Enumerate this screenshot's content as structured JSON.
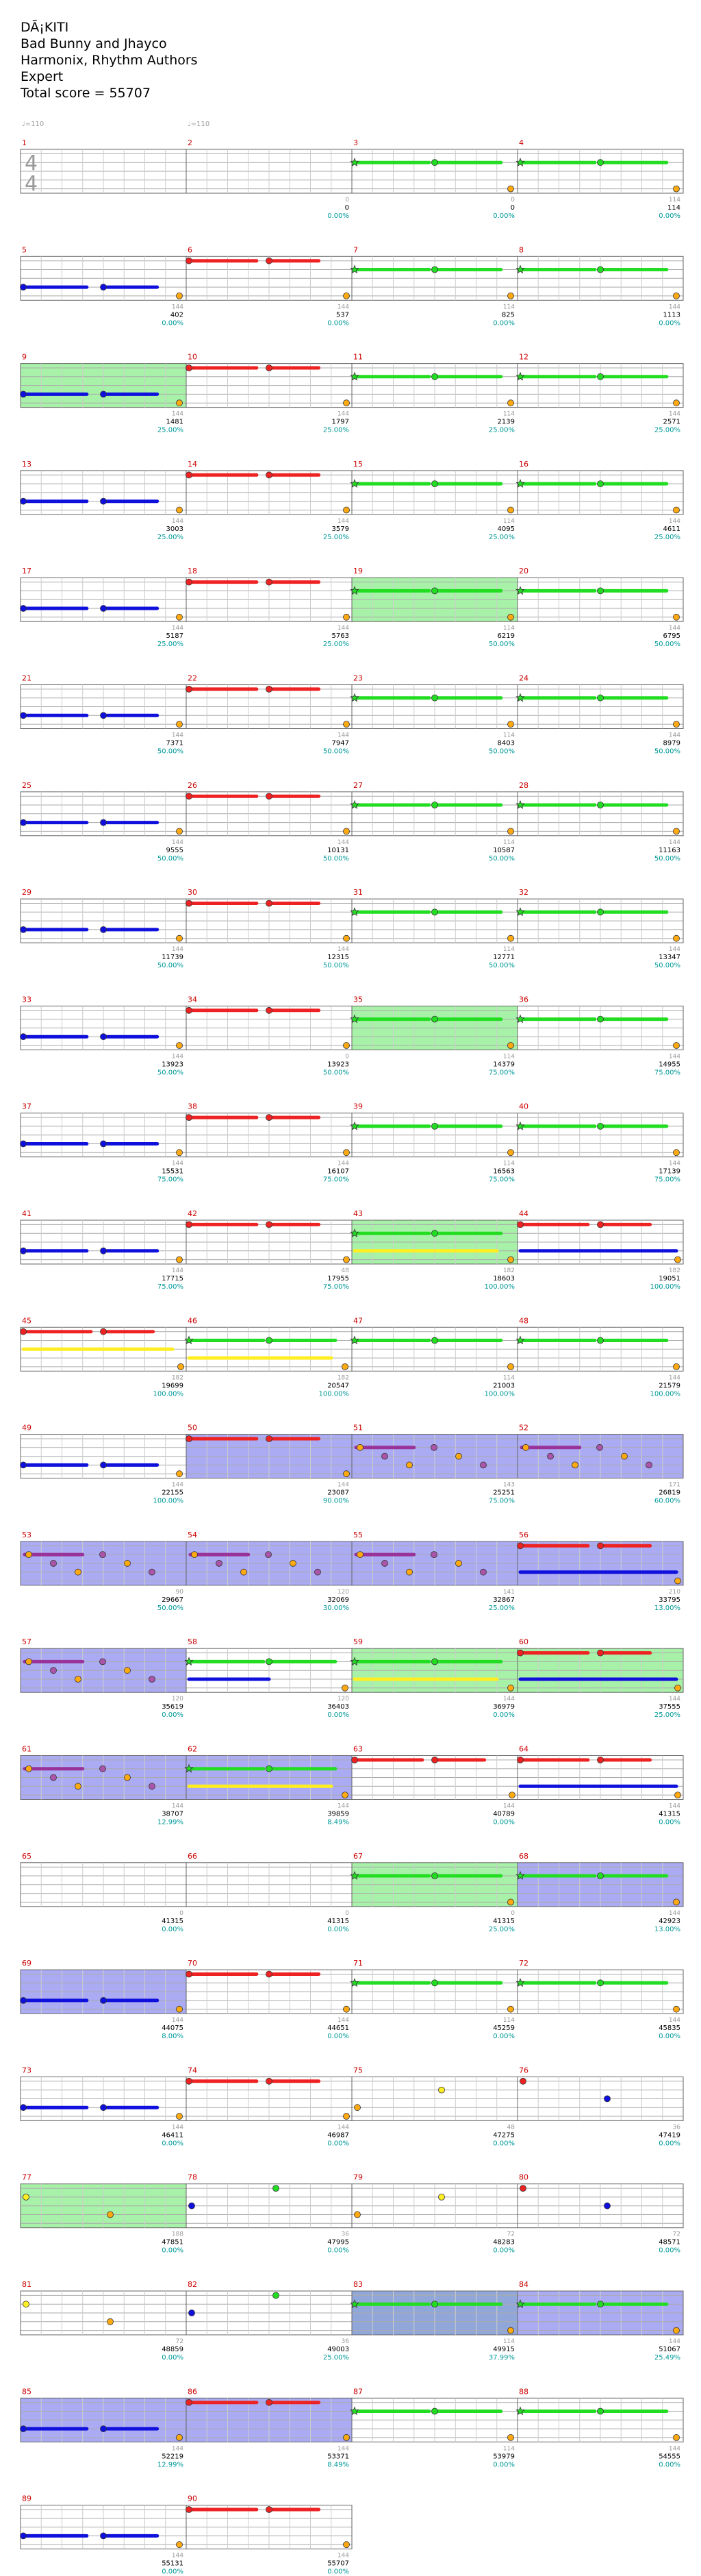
{
  "header": {
    "title": "DÃ¡KITI",
    "artists": "Bad Bunny and Jhayco",
    "authors": "Harmonix, Rhythm Authors",
    "difficulty": "Expert",
    "total_score": "Total score = 55707"
  },
  "tempo_marks": [
    {
      "measure": 1,
      "text": "♩=110"
    },
    {
      "measure": 2,
      "text": "♩=110"
    }
  ],
  "time_signature": {
    "measure": 1,
    "top": "4",
    "bottom": "4"
  },
  "colors": {
    "green": "#22dd22",
    "red": "#ee2222",
    "yellow": "#ffee22",
    "blue": "#1010dd",
    "orange": "#ffaa11",
    "overdrive": "#99ee99",
    "solo": "#8888ee",
    "measure_number": "#cc0000",
    "score_text": "#000000",
    "percent_text": "#009999",
    "grey_text": "#999999"
  },
  "measures": [
    {
      "n": 1,
      "type": "intro",
      "combo": "",
      "score": "",
      "pct": ""
    },
    {
      "n": 2,
      "type": "intro",
      "combo": "0",
      "score": "0",
      "pct": "0.00%"
    },
    {
      "n": 3,
      "type": "G",
      "combo": "0",
      "score": "0",
      "pct": "0.00%"
    },
    {
      "n": 4,
      "type": "G",
      "combo": "114",
      "score": "114",
      "pct": "0.00%"
    },
    {
      "n": 5,
      "type": "B",
      "combo": "144",
      "score": "402",
      "pct": "0.00%"
    },
    {
      "n": 6,
      "type": "R",
      "combo": "144",
      "score": "537",
      "pct": "0.00%"
    },
    {
      "n": 7,
      "type": "G",
      "combo": "114",
      "score": "825",
      "pct": "0.00%"
    },
    {
      "n": 8,
      "type": "G",
      "combo": "144",
      "score": "1113",
      "pct": "0.00%"
    },
    {
      "n": 9,
      "type": "B",
      "combo": "144",
      "score": "1481",
      "pct": "25.00%",
      "hl": "od"
    },
    {
      "n": 10,
      "type": "R",
      "combo": "144",
      "score": "1797",
      "pct": "25.00%"
    },
    {
      "n": 11,
      "type": "G",
      "combo": "114",
      "score": "2139",
      "pct": "25.00%"
    },
    {
      "n": 12,
      "type": "G",
      "combo": "144",
      "score": "2571",
      "pct": "25.00%"
    },
    {
      "n": 13,
      "type": "B",
      "combo": "144",
      "score": "3003",
      "pct": "25.00%"
    },
    {
      "n": 14,
      "type": "R",
      "combo": "144",
      "score": "3579",
      "pct": "25.00%"
    },
    {
      "n": 15,
      "type": "G",
      "combo": "114",
      "score": "4095",
      "pct": "25.00%"
    },
    {
      "n": 16,
      "type": "G",
      "combo": "144",
      "score": "4611",
      "pct": "25.00%"
    },
    {
      "n": 17,
      "type": "B",
      "combo": "144",
      "score": "5187",
      "pct": "25.00%"
    },
    {
      "n": 18,
      "type": "R",
      "combo": "144",
      "score": "5763",
      "pct": "25.00%"
    },
    {
      "n": 19,
      "type": "G",
      "combo": "114",
      "score": "6219",
      "pct": "50.00%",
      "hl": "od"
    },
    {
      "n": 20,
      "type": "G",
      "combo": "144",
      "score": "6795",
      "pct": "50.00%"
    },
    {
      "n": 21,
      "type": "B",
      "combo": "144",
      "score": "7371",
      "pct": "50.00%"
    },
    {
      "n": 22,
      "type": "R",
      "combo": "144",
      "score": "7947",
      "pct": "50.00%"
    },
    {
      "n": 23,
      "type": "G",
      "combo": "114",
      "score": "8403",
      "pct": "50.00%"
    },
    {
      "n": 24,
      "type": "G",
      "combo": "144",
      "score": "8979",
      "pct": "50.00%"
    },
    {
      "n": 25,
      "type": "B",
      "combo": "144",
      "score": "9555",
      "pct": "50.00%"
    },
    {
      "n": 26,
      "type": "R",
      "combo": "144",
      "score": "10131",
      "pct": "50.00%"
    },
    {
      "n": 27,
      "type": "G",
      "combo": "114",
      "score": "10587",
      "pct": "50.00%"
    },
    {
      "n": 28,
      "type": "G",
      "combo": "144",
      "score": "11163",
      "pct": "50.00%"
    },
    {
      "n": 29,
      "type": "B",
      "combo": "144",
      "score": "11739",
      "pct": "50.00%"
    },
    {
      "n": 30,
      "type": "R",
      "combo": "144",
      "score": "12315",
      "pct": "50.00%"
    },
    {
      "n": 31,
      "type": "G",
      "combo": "114",
      "score": "12771",
      "pct": "50.00%"
    },
    {
      "n": 32,
      "type": "G",
      "combo": "144",
      "score": "13347",
      "pct": "50.00%"
    },
    {
      "n": 33,
      "type": "B",
      "combo": "144",
      "score": "13923",
      "pct": "50.00%"
    },
    {
      "n": 34,
      "type": "R",
      "combo": "0",
      "score": "13923",
      "pct": "50.00%"
    },
    {
      "n": 35,
      "type": "G",
      "combo": "114",
      "score": "14379",
      "pct": "75.00%",
      "hl": "od"
    },
    {
      "n": 36,
      "type": "G",
      "combo": "144",
      "score": "14955",
      "pct": "75.00%"
    },
    {
      "n": 37,
      "type": "B",
      "combo": "144",
      "score": "15531",
      "pct": "75.00%"
    },
    {
      "n": 38,
      "type": "R",
      "combo": "144",
      "score": "16107",
      "pct": "75.00%"
    },
    {
      "n": 39,
      "type": "G",
      "combo": "114",
      "score": "16563",
      "pct": "75.00%"
    },
    {
      "n": 40,
      "type": "G",
      "combo": "144",
      "score": "17139",
      "pct": "75.00%"
    },
    {
      "n": 41,
      "type": "B",
      "combo": "144",
      "score": "17715",
      "pct": "75.00%"
    },
    {
      "n": 42,
      "type": "R",
      "combo": "48",
      "score": "17955",
      "pct": "75.00%"
    },
    {
      "n": 43,
      "type": "GY",
      "combo": "182",
      "score": "18603",
      "pct": "100.00%",
      "hl": "od"
    },
    {
      "n": 44,
      "type": "RB",
      "combo": "182",
      "score": "19051",
      "pct": "100.00%"
    },
    {
      "n": 45,
      "type": "RY",
      "combo": "182",
      "score": "19699",
      "pct": "100.00%"
    },
    {
      "n": 46,
      "type": "GY",
      "combo": "182",
      "score": "20547",
      "pct": "100.00%"
    },
    {
      "n": 47,
      "type": "G",
      "combo": "114",
      "score": "21003",
      "pct": "100.00%"
    },
    {
      "n": 48,
      "type": "G",
      "combo": "144",
      "score": "21579",
      "pct": "100.00%"
    },
    {
      "n": 49,
      "type": "B",
      "combo": "144",
      "score": "22155",
      "pct": "100.00%"
    },
    {
      "n": 50,
      "type": "R",
      "combo": "144",
      "score": "23087",
      "pct": "90.00%",
      "hl": "solo"
    },
    {
      "n": 51,
      "type": "S",
      "combo": "143",
      "score": "25251",
      "pct": "75.00%",
      "hl": "solo"
    },
    {
      "n": 52,
      "type": "S",
      "combo": "171",
      "score": "26819",
      "pct": "60.00%",
      "hl": "solo"
    },
    {
      "n": 53,
      "type": "S",
      "combo": "90",
      "score": "29667",
      "pct": "50.00%",
      "hl": "solo"
    },
    {
      "n": 54,
      "type": "S",
      "combo": "120",
      "score": "32069",
      "pct": "30.00%",
      "hl": "solo"
    },
    {
      "n": 55,
      "type": "S",
      "combo": "141",
      "score": "32867",
      "pct": "25.00%",
      "hl": "solo"
    },
    {
      "n": 56,
      "type": "RB",
      "combo": "210",
      "score": "33795",
      "pct": "13.00%",
      "hl": "solo"
    },
    {
      "n": 57,
      "type": "S",
      "combo": "120",
      "score": "35619",
      "pct": "0.00%",
      "hl": "solo"
    },
    {
      "n": 58,
      "type": "GB",
      "combo": "120",
      "score": "36403",
      "pct": "0.00%"
    },
    {
      "n": 59,
      "type": "GY",
      "combo": "144",
      "score": "36979",
      "pct": "0.00%",
      "hl": "od"
    },
    {
      "n": 60,
      "type": "RB",
      "combo": "144",
      "score": "37555",
      "pct": "25.00%",
      "hl": "od"
    },
    {
      "n": 61,
      "type": "S",
      "combo": "144",
      "score": "38707",
      "pct": "12.99%",
      "hl": "solo"
    },
    {
      "n": 62,
      "type": "GY",
      "combo": "144",
      "score": "39859",
      "pct": "8.49%",
      "hl": "solo"
    },
    {
      "n": 63,
      "type": "R",
      "combo": "144",
      "score": "40789",
      "pct": "0.00%"
    },
    {
      "n": 64,
      "type": "RB",
      "combo": "144",
      "score": "41315",
      "pct": "0.00%"
    },
    {
      "n": 65,
      "type": "empty",
      "combo": "0",
      "score": "41315",
      "pct": "0.00%"
    },
    {
      "n": 66,
      "type": "empty",
      "combo": "0",
      "score": "41315",
      "pct": "0.00%"
    },
    {
      "n": 67,
      "type": "G",
      "combo": "0",
      "score": "41315",
      "pct": "25.00%",
      "hl": "od"
    },
    {
      "n": 68,
      "type": "G",
      "combo": "144",
      "score": "42923",
      "pct": "13.00%",
      "hl": "solo"
    },
    {
      "n": 69,
      "type": "B",
      "combo": "144",
      "score": "44075",
      "pct": "8.00%",
      "hl": "solo"
    },
    {
      "n": 70,
      "type": "R",
      "combo": "144",
      "score": "44651",
      "pct": "0.00%"
    },
    {
      "n": 71,
      "type": "G",
      "combo": "114",
      "score": "45259",
      "pct": "0.00%"
    },
    {
      "n": 72,
      "type": "G",
      "combo": "144",
      "score": "45835",
      "pct": "0.00%"
    },
    {
      "n": 73,
      "type": "B",
      "combo": "144",
      "score": "46411",
      "pct": "0.00%"
    },
    {
      "n": 74,
      "type": "R",
      "combo": "144",
      "score": "46987",
      "pct": "0.00%"
    },
    {
      "n": 75,
      "type": "sparse",
      "combo": "48",
      "score": "47275",
      "pct": "0.00%"
    },
    {
      "n": 76,
      "type": "sparse",
      "combo": "36",
      "score": "47419",
      "pct": "0.00%"
    },
    {
      "n": 77,
      "type": "sparse",
      "combo": "188",
      "score": "47851",
      "pct": "0.00%",
      "hl": "od"
    },
    {
      "n": 78,
      "type": "sparse",
      "combo": "36",
      "score": "47995",
      "pct": "0.00%"
    },
    {
      "n": 79,
      "type": "sparse",
      "combo": "72",
      "score": "48283",
      "pct": "0.00%"
    },
    {
      "n": 80,
      "type": "sparse",
      "combo": "72",
      "score": "48571",
      "pct": "0.00%"
    },
    {
      "n": 81,
      "type": "sparse",
      "combo": "72",
      "score": "48859",
      "pct": "0.00%"
    },
    {
      "n": 82,
      "type": "sparse",
      "combo": "36",
      "score": "49003",
      "pct": "25.00%"
    },
    {
      "n": 83,
      "type": "G",
      "combo": "114",
      "score": "49915",
      "pct": "37.99%",
      "hl": "both"
    },
    {
      "n": 84,
      "type": "G",
      "combo": "144",
      "score": "51067",
      "pct": "25.49%",
      "hl": "solo"
    },
    {
      "n": 85,
      "type": "B",
      "combo": "144",
      "score": "52219",
      "pct": "12.99%",
      "hl": "solo"
    },
    {
      "n": 86,
      "type": "R",
      "combo": "144",
      "score": "53371",
      "pct": "8.49%",
      "hl": "solo"
    },
    {
      "n": 87,
      "type": "G",
      "combo": "114",
      "score": "53979",
      "pct": "0.00%"
    },
    {
      "n": 88,
      "type": "G",
      "combo": "144",
      "score": "54555",
      "pct": "0.00%"
    },
    {
      "n": 89,
      "type": "B",
      "combo": "144",
      "score": "55131",
      "pct": "0.00%"
    },
    {
      "n": 90,
      "type": "R",
      "combo": "144",
      "score": "55707",
      "pct": "0.00%"
    }
  ]
}
